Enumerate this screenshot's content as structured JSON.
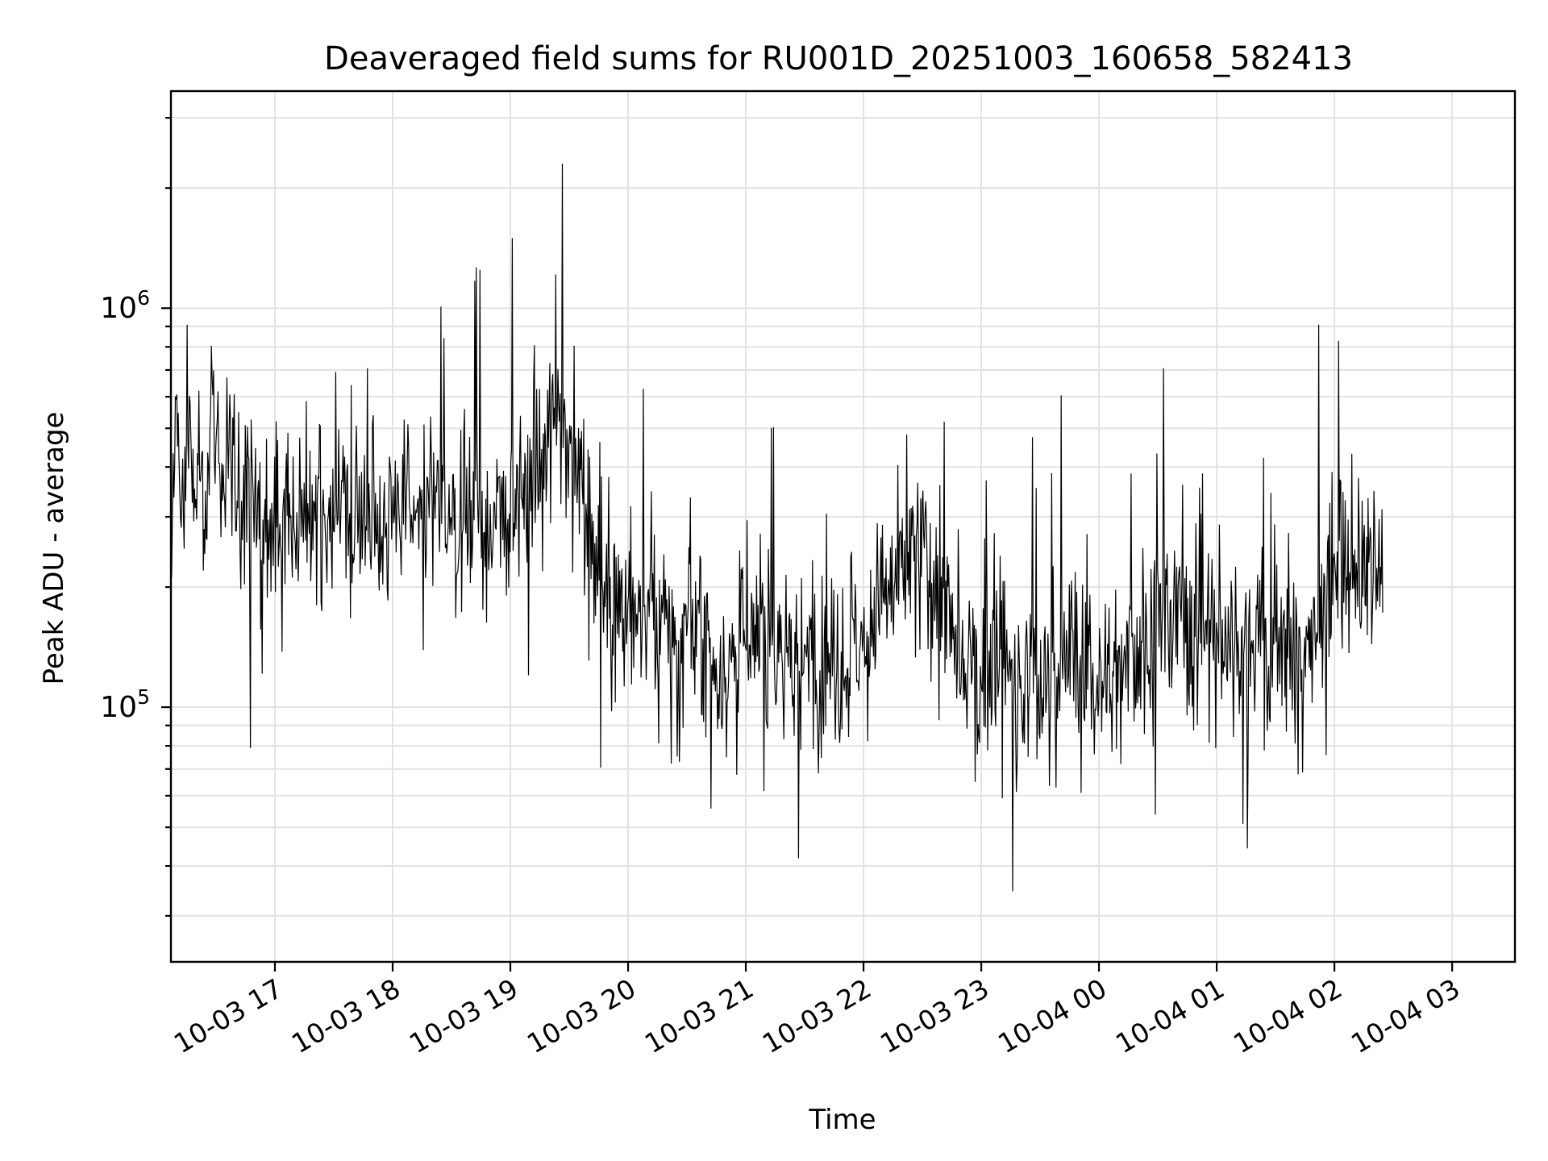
{
  "chart_data": {
    "type": "line",
    "title": "Deaveraged field sums for RU001D_20251003_160658_582413",
    "xlabel": "Time",
    "ylabel": "Peak ADU - average",
    "xlim": [
      "2025-10-03 16:07",
      "2025-10-04 03:32"
    ],
    "ylim": [
      23000,
      3500000
    ],
    "yscale": "log",
    "grid": true,
    "xticks": [
      {
        "label": "10-03 17",
        "time": "2025-10-03 17:00"
      },
      {
        "label": "10-03 18",
        "time": "2025-10-03 18:00"
      },
      {
        "label": "10-03 19",
        "time": "2025-10-03 19:00"
      },
      {
        "label": "10-03 20",
        "time": "2025-10-03 20:00"
      },
      {
        "label": "10-03 21",
        "time": "2025-10-03 21:00"
      },
      {
        "label": "10-03 22",
        "time": "2025-10-03 22:00"
      },
      {
        "label": "10-03 23",
        "time": "2025-10-03 23:00"
      },
      {
        "label": "10-04 00",
        "time": "2025-10-04 00:00"
      },
      {
        "label": "10-04 01",
        "time": "2025-10-04 01:00"
      },
      {
        "label": "10-04 02",
        "time": "2025-10-04 02:00"
      },
      {
        "label": "10-04 03",
        "time": "2025-10-04 03:00"
      }
    ],
    "yticks": [
      {
        "base": "10",
        "exp": "5",
        "value": 100000
      },
      {
        "base": "10",
        "exp": "6",
        "value": 1000000
      }
    ],
    "series": [
      {
        "color": "#000000",
        "x_start": "2025-10-03 16:07",
        "x_step_minutes": 3,
        "values": [
          320000,
          410000,
          350000,
          520000,
          380000,
          450000,
          300000,
          610000,
          390000,
          340000,
          470000,
          360000,
          290000,
          330000,
          400000,
          310000,
          280000,
          350000,
          260000,
          300000,
          320000,
          270000,
          340000,
          290000,
          310000,
          360000,
          250000,
          300000,
          280000,
          330000,
          270000,
          290000,
          320000,
          260000,
          350000,
          300000,
          280000,
          310000,
          390000,
          280000,
          300000,
          330000,
          290000,
          270000,
          320000,
          310000,
          280000,
          350000,
          260000,
          300000,
          340000,
          290000,
          360000,
          280000,
          310000,
          330000,
          270000,
          300000,
          320000,
          290000,
          350000,
          400000,
          420000,
          380000,
          460000,
          520000,
          600000,
          480000,
          540000,
          420000,
          360000,
          300000,
          240000,
          230000,
          210000,
          190000,
          200000,
          170000,
          180000,
          160000,
          190000,
          150000,
          170000,
          140000,
          160000,
          180000,
          130000,
          150000,
          170000,
          140000,
          160000,
          150000,
          130000,
          120000,
          140000,
          110000,
          130000,
          150000,
          120000,
          140000,
          170000,
          130000,
          160000,
          140000,
          120000,
          150000,
          130000,
          110000,
          140000,
          160000,
          120000,
          140000,
          130000,
          150000,
          110000,
          130000,
          160000,
          140000,
          120000,
          150000,
          190000,
          170000,
          210000,
          190000,
          230000,
          200000,
          250000,
          220000,
          260000,
          210000,
          230000,
          190000,
          170000,
          130000,
          120000,
          110000,
          130000,
          110000,
          120000,
          130000,
          140000,
          150000,
          130000,
          110000,
          120000,
          100000,
          130000,
          110000,
          100000,
          120000,
          110000,
          130000,
          120000,
          150000,
          130000,
          110000,
          140000,
          120000,
          100000,
          130000,
          110000,
          120000,
          140000,
          160000,
          130000,
          150000,
          170000,
          140000,
          160000,
          180000,
          150000,
          170000,
          190000,
          160000,
          180000,
          170000,
          150000,
          160000,
          140000,
          130000,
          150000,
          170000,
          140000,
          120000,
          160000,
          180000,
          130000,
          110000,
          150000,
          170000,
          130000,
          100000,
          140000,
          160000,
          120000,
          180000,
          200000,
          170000,
          210000,
          230000,
          200000,
          250000,
          220000,
          190000,
          240000,
          210000,
          230000
        ]
      }
    ]
  }
}
